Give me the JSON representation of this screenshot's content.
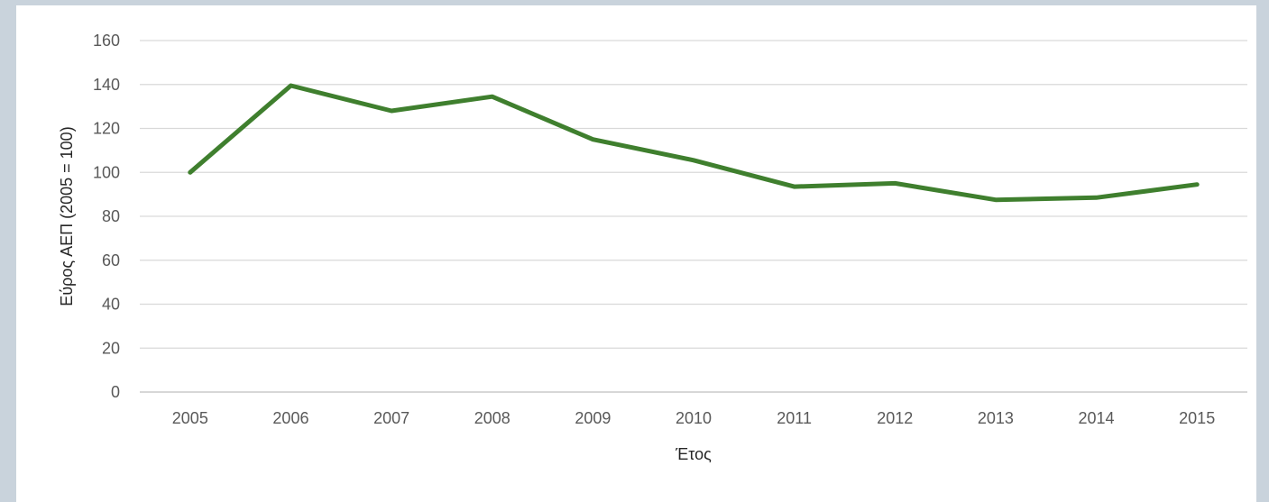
{
  "chart_data": {
    "type": "line",
    "title": "",
    "xlabel": "Έτος",
    "ylabel": "Εύρος ΑΕΠ (2005 = 100)",
    "categories": [
      "2005",
      "2006",
      "2007",
      "2008",
      "2009",
      "2010",
      "2011",
      "2012",
      "2013",
      "2014",
      "2015"
    ],
    "series": [
      {
        "values": [
          100,
          139.5,
          128,
          134.5,
          115,
          105.5,
          93.5,
          95,
          87.5,
          88.5,
          94.5
        ],
        "color": "#3f7f2e"
      }
    ],
    "ylim": [
      0,
      160
    ],
    "yticks": [
      0,
      20,
      40,
      60,
      80,
      100,
      120,
      140,
      160
    ],
    "grid": true,
    "legend": "none"
  }
}
